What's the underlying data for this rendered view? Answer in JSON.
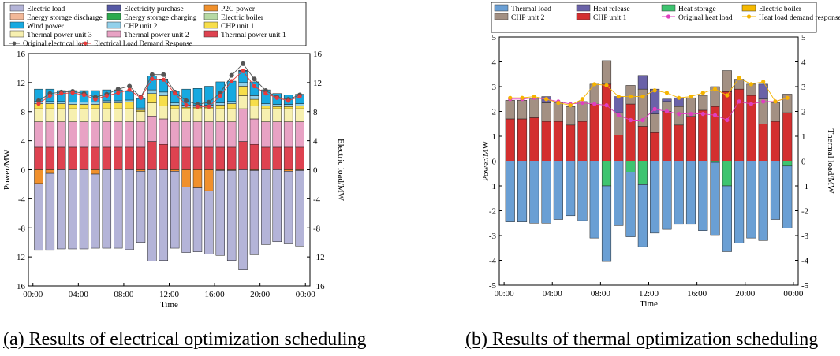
{
  "chart_data": [
    {
      "type": "bar",
      "stacked": true,
      "title": "",
      "xlabel": "Time",
      "ylabel": "Power/MW",
      "y2label": "Electric load/MW",
      "ylim": [
        -16,
        16
      ],
      "yticks": [
        -16,
        -12,
        -8,
        -4,
        0,
        4,
        8,
        12,
        16
      ],
      "xtick_labels": [
        "00:00",
        "04:00",
        "08:00",
        "12:00",
        "16:00",
        "20:00",
        "00:00"
      ],
      "x": [
        1,
        2,
        3,
        4,
        5,
        6,
        7,
        8,
        9,
        10,
        11,
        12,
        13,
        14,
        15,
        16,
        17,
        18,
        19,
        20,
        21,
        22,
        23,
        24
      ],
      "legend": [
        {
          "name": "Electric load",
          "color": "#b4b4d8",
          "kind": "bar"
        },
        {
          "name": "Electricity purchase",
          "color": "#5558a4",
          "kind": "bar"
        },
        {
          "name": "P2G power",
          "color": "#f0902c",
          "kind": "bar"
        },
        {
          "name": "Energy storage discharge",
          "color": "#f2b898",
          "kind": "bar"
        },
        {
          "name": "Energy storage charging",
          "color": "#2daa4e",
          "kind": "bar"
        },
        {
          "name": "Electric boiler",
          "color": "#b6d9a4",
          "kind": "bar"
        },
        {
          "name": "Wind power",
          "color": "#17a9e0",
          "kind": "bar"
        },
        {
          "name": "CHP unit 2",
          "color": "#92d0ea",
          "kind": "bar"
        },
        {
          "name": "CHP unit 1",
          "color": "#f7de4a",
          "kind": "bar"
        },
        {
          "name": "Thermal power unit 3",
          "color": "#f7f0b0",
          "kind": "bar"
        },
        {
          "name": "Thermal power unit 2",
          "color": "#e8a2c4",
          "kind": "bar"
        },
        {
          "name": "Thermal power unit 1",
          "color": "#de4250",
          "kind": "bar"
        },
        {
          "name": "Original electrical load",
          "color": "#555555",
          "kind": "line"
        },
        {
          "name": "Electrical Load Demand Response",
          "color": "#e83a3a",
          "kind": "line"
        }
      ],
      "series": [
        {
          "name": "Thermal power unit 1",
          "color": "#de4250",
          "values": [
            3.1,
            3.1,
            3.1,
            3.1,
            3.1,
            3.1,
            3.1,
            3.1,
            3.1,
            3.1,
            3.9,
            3.5,
            3.1,
            3.1,
            3.1,
            3.1,
            3.1,
            3.1,
            3.9,
            3.5,
            3.1,
            3.1,
            3.1,
            3.1
          ]
        },
        {
          "name": "Thermal power unit 2",
          "color": "#e8a2c4",
          "values": [
            3.5,
            3.5,
            3.5,
            3.5,
            3.5,
            3.5,
            3.5,
            3.5,
            3.5,
            3.5,
            3.5,
            3.5,
            3.5,
            3.5,
            3.5,
            3.5,
            3.5,
            3.5,
            4.5,
            3.5,
            3.5,
            3.5,
            3.5,
            3.5
          ]
        },
        {
          "name": "Thermal power unit 3",
          "color": "#f7f0b0",
          "values": [
            1.8,
            1.8,
            1.8,
            1.8,
            1.8,
            1.8,
            1.8,
            1.8,
            1.8,
            1.4,
            1.8,
            1.8,
            1.8,
            1.8,
            1.8,
            1.8,
            1.8,
            1.8,
            1.8,
            1.8,
            1.8,
            1.8,
            1.8,
            1.8
          ]
        },
        {
          "name": "CHP unit 1",
          "color": "#f7de4a",
          "values": [
            0.7,
            0.7,
            0.7,
            0.6,
            0.6,
            0.6,
            0.8,
            0.8,
            0.9,
            0.2,
            1.3,
            1.4,
            0.5,
            0.2,
            0.2,
            0.2,
            0.5,
            0.7,
            1.3,
            0.9,
            0.4,
            0.3,
            0.3,
            0.4
          ]
        },
        {
          "name": "CHP unit 2",
          "color": "#92d0ea",
          "values": [
            0.3,
            0.3,
            0.3,
            0.3,
            0.3,
            0.3,
            0.3,
            0.3,
            0.3,
            0.3,
            0.5,
            0.5,
            0.3,
            0.3,
            0.3,
            0.3,
            0.3,
            0.3,
            0.5,
            0.5,
            0.3,
            0.3,
            0.3,
            0.3
          ]
        },
        {
          "name": "Wind power",
          "color": "#17a9e0",
          "values": [
            1.7,
            1.7,
            1.5,
            1.6,
            1.6,
            1.6,
            1.5,
            1.5,
            1.2,
            1.3,
            1.9,
            1.8,
            1.6,
            2.2,
            2.3,
            2.6,
            2.9,
            2.8,
            1.6,
            1.9,
            1.9,
            1.5,
            1.3,
            1.3
          ]
        },
        {
          "name": "Electricity purchase",
          "color": "#5558a4",
          "values": [
            0,
            0,
            0,
            0,
            0,
            0,
            0,
            0,
            0,
            0,
            0,
            0,
            0,
            0,
            0,
            0,
            0,
            0,
            0.1,
            0,
            0,
            0,
            0,
            0
          ]
        },
        {
          "name": "Energy storage discharge",
          "color": "#f2b898",
          "values": [
            0,
            0,
            0,
            0,
            0,
            0,
            0,
            0,
            0,
            0,
            0,
            0,
            0,
            0,
            0,
            0,
            0,
            0,
            0,
            0,
            0,
            0,
            0,
            0
          ]
        },
        {
          "name": "Energy storage charging",
          "color": "#2daa4e",
          "values": [
            0,
            0,
            0,
            0,
            0,
            0,
            0,
            0,
            0,
            0,
            0,
            0,
            0,
            0,
            0,
            0,
            0,
            0,
            0,
            0,
            0,
            0,
            0,
            0
          ]
        },
        {
          "name": "Electric boiler",
          "color": "#b6d9a4",
          "values": [
            0,
            0,
            0,
            0,
            0,
            0,
            0,
            0,
            0,
            0,
            0,
            0,
            0,
            0,
            0,
            0,
            0,
            0,
            0,
            0,
            0,
            0,
            0,
            0
          ]
        },
        {
          "name": "P2G power",
          "color": "#f0902c",
          "values": [
            -1.9,
            -0.5,
            0,
            0,
            0,
            -0.6,
            0,
            0,
            0,
            -0.2,
            0,
            0,
            -0.2,
            -2.4,
            -2.5,
            -2.9,
            -0.1,
            -0.1,
            0,
            -0.1,
            0,
            0,
            -0.2,
            -0.1
          ]
        },
        {
          "name": "Electric load",
          "color": "#b4b4d8",
          "values": [
            -9.2,
            -10.6,
            -10.9,
            -10.9,
            -10.9,
            -10.2,
            -10.8,
            -10.8,
            -11.0,
            -9.8,
            -12.6,
            -12.5,
            -10.6,
            -9.0,
            -8.8,
            -8.7,
            -11.7,
            -12.4,
            -13.8,
            -11.6,
            -10.3,
            -9.9,
            -10.0,
            -10.4
          ]
        }
      ],
      "lines": [
        {
          "name": "Original electrical load",
          "color": "#555555",
          "values": [
            9.5,
            10.5,
            10.7,
            10.8,
            10.5,
            10.0,
            10.4,
            11.1,
            11.5,
            10.0,
            13.1,
            13.1,
            10.7,
            9.5,
            9.0,
            9.3,
            10.6,
            13.0,
            14.6,
            12.5,
            10.9,
            10.0,
            9.7,
            10.3
          ]
        },
        {
          "name": "Electrical Load Demand Response",
          "color": "#e83a3a",
          "values": [
            9.1,
            10.2,
            10.5,
            10.6,
            10.3,
            9.7,
            10.2,
            10.6,
            11.0,
            9.9,
            12.5,
            12.4,
            10.5,
            8.9,
            8.7,
            8.7,
            10.2,
            12.2,
            13.6,
            11.5,
            10.5,
            9.9,
            9.5,
            10.1
          ]
        }
      ]
    },
    {
      "type": "bar",
      "stacked": true,
      "title": "",
      "xlabel": "Time",
      "ylabel": "Power/MW",
      "y2label": "Thermal load/MW",
      "ylim": [
        -5,
        5
      ],
      "yticks": [
        -5,
        -4,
        -3,
        -2,
        -1,
        0,
        1,
        2,
        3,
        4,
        5
      ],
      "xtick_labels": [
        "00:00",
        "04:00",
        "08:00",
        "12:00",
        "16:00",
        "20:00",
        "00:00"
      ],
      "x": [
        1,
        2,
        3,
        4,
        5,
        6,
        7,
        8,
        9,
        10,
        11,
        12,
        13,
        14,
        15,
        16,
        17,
        18,
        19,
        20,
        21,
        22,
        23,
        24
      ],
      "legend": [
        {
          "name": "Thermal load",
          "color": "#6a9fd4",
          "kind": "bar"
        },
        {
          "name": "Heat release",
          "color": "#6a62a8",
          "kind": "bar"
        },
        {
          "name": "Heat storage",
          "color": "#3ec470",
          "kind": "bar"
        },
        {
          "name": "Electric boiler",
          "color": "#f5b900",
          "kind": "bar"
        },
        {
          "name": "CHP unit 2",
          "color": "#a39083",
          "kind": "bar"
        },
        {
          "name": "CHP unit 1",
          "color": "#d32f2f",
          "kind": "bar"
        },
        {
          "name": "Original heat load",
          "color": "#e040c0",
          "kind": "line"
        },
        {
          "name": "Heat load demand response",
          "color": "#f5b400",
          "kind": "line"
        }
      ],
      "series": [
        {
          "name": "CHP unit 1",
          "color": "#d32f2f",
          "values": [
            1.7,
            1.7,
            1.75,
            1.6,
            1.6,
            1.45,
            1.6,
            2.3,
            3.1,
            1.05,
            2.3,
            1.4,
            1.15,
            2.0,
            1.45,
            1.8,
            2.05,
            2.2,
            2.8,
            2.9,
            2.65,
            1.5,
            1.6,
            1.95
          ]
        },
        {
          "name": "CHP unit 2",
          "color": "#a39083",
          "values": [
            0.75,
            0.75,
            0.75,
            0.75,
            0.75,
            0.75,
            0.8,
            0.8,
            0.95,
            0.9,
            0.75,
            1.5,
            0.75,
            0.4,
            0.75,
            0.75,
            0.6,
            0.8,
            0.85,
            0.4,
            0.45,
            1.0,
            0.75,
            0.75
          ]
        },
        {
          "name": "Heat release",
          "color": "#6a62a8",
          "values": [
            0,
            0,
            0,
            0.25,
            0,
            0,
            0,
            0,
            0,
            0.65,
            0,
            0.55,
            1.0,
            0.1,
            0.35,
            0,
            0,
            0,
            0,
            0,
            0,
            0.6,
            0,
            0
          ]
        },
        {
          "name": "Electric boiler",
          "color": "#f5b900",
          "values": [
            0,
            0,
            0,
            0,
            0,
            0,
            0,
            0,
            0,
            0,
            0,
            0,
            0,
            0,
            0,
            0,
            0,
            0,
            0,
            0,
            0,
            0,
            0,
            0
          ]
        },
        {
          "name": "Heat storage",
          "color": "#3ec470",
          "values": [
            0,
            0,
            0,
            0,
            0,
            0,
            0,
            0,
            -1.0,
            0,
            -0.45,
            -0.95,
            0,
            0,
            0,
            0,
            0,
            -0.05,
            -1.0,
            0,
            0,
            0,
            0,
            -0.2
          ]
        },
        {
          "name": "Thermal load",
          "color": "#6a9fd4",
          "values": [
            -2.45,
            -2.45,
            -2.5,
            -2.5,
            -2.35,
            -2.2,
            -2.4,
            -3.1,
            -3.05,
            -2.6,
            -2.6,
            -2.5,
            -2.9,
            -2.75,
            -2.55,
            -2.55,
            -2.8,
            -2.95,
            -2.65,
            -3.3,
            -3.1,
            -3.2,
            -2.35,
            -2.5
          ]
        }
      ],
      "lines": [
        {
          "name": "Original heat load",
          "color": "#e040c0",
          "values": [
            2.5,
            2.5,
            2.55,
            2.5,
            2.4,
            2.3,
            2.35,
            2.3,
            2.25,
            1.85,
            1.65,
            1.65,
            2.1,
            2.0,
            1.9,
            1.9,
            1.9,
            1.85,
            1.65,
            2.4,
            2.3,
            2.4,
            2.4,
            2.55
          ]
        },
        {
          "name": "Heat load demand response",
          "color": "#f5b400",
          "values": [
            2.55,
            2.55,
            2.6,
            2.5,
            2.35,
            2.25,
            2.5,
            3.1,
            3.05,
            2.6,
            2.6,
            2.6,
            2.85,
            2.75,
            2.55,
            2.6,
            2.75,
            2.9,
            2.65,
            3.35,
            3.1,
            3.2,
            2.4,
            2.55
          ]
        }
      ]
    }
  ],
  "captions": {
    "left": "(a) Results of electrical optimization scheduling",
    "right": "(b) Results of thermal optimization scheduling"
  }
}
